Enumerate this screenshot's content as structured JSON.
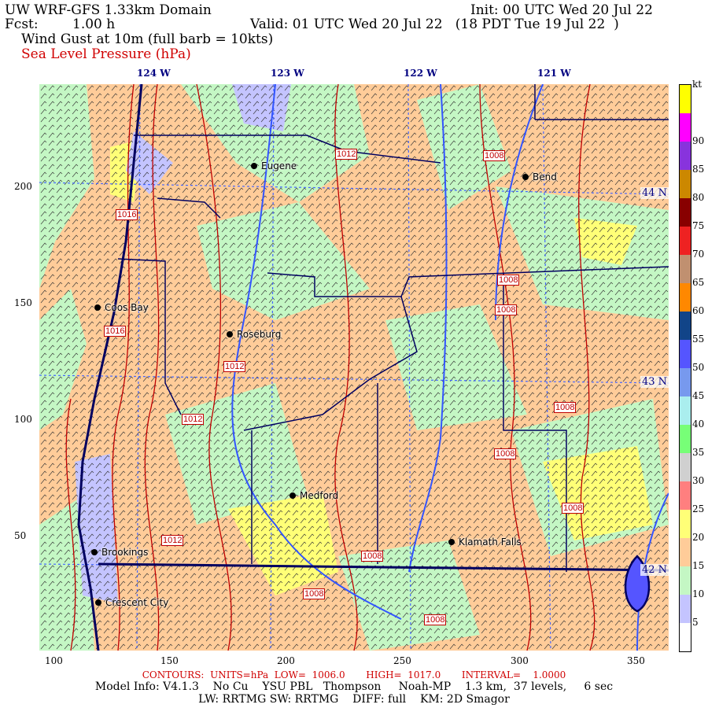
{
  "header": {
    "title": "UW WRF-GFS 1.33km Domain",
    "init": "Init: 00 UTC Wed 20 Jul 22",
    "fcst_label": "Fcst:",
    "fcst_value": "1.00 h",
    "valid": "Valid: 01 UTC Wed 20 Jul 22   (18 PDT Tue 19 Jul 22  )",
    "field1": "Wind Gust at 10m (full barb = 10kts)",
    "field2": "Sea Level Pressure (hPa)"
  },
  "lon_labels": [
    "124 W",
    "123 W",
    "122 W",
    "121 W"
  ],
  "lat_labels": [
    "44 N",
    "43 N",
    "42 N"
  ],
  "x_ticks": [
    "100",
    "150",
    "200",
    "250",
    "300",
    "350"
  ],
  "y_ticks": [
    "200",
    "150",
    "100",
    "50"
  ],
  "cities": [
    {
      "name": "Eugene"
    },
    {
      "name": "Bend"
    },
    {
      "name": "Coos Bay"
    },
    {
      "name": "Roseburg"
    },
    {
      "name": "Medford"
    },
    {
      "name": "Klamath Falls"
    },
    {
      "name": "Brookings"
    },
    {
      "name": "Crescent City"
    }
  ],
  "contour_labels": [
    "1012",
    "1008",
    "1016",
    "1008",
    "1008",
    "1016",
    "1012",
    "1012",
    "1008",
    "1008",
    "1008",
    "1012",
    "1008",
    "1008",
    "1008"
  ],
  "colorbar": {
    "unit": "kt",
    "labels": [
      "5",
      "10",
      "15",
      "20",
      "25",
      "30",
      "35",
      "40",
      "45",
      "50",
      "55",
      "60",
      "65",
      "70",
      "75",
      "80",
      "85",
      "90"
    ],
    "colors": [
      "#ffffff",
      "#c4c4ff",
      "#c4f7c4",
      "#ffcc99",
      "#ffff77",
      "#ff7f7f",
      "#d0d0d0",
      "#77ff77",
      "#aaeeee",
      "#7799ee",
      "#5555ff",
      "#114488",
      "#ff8800",
      "#c09070",
      "#ee2222",
      "#880000",
      "#cc8800",
      "#8833dd",
      "#ff00ff",
      "#ffff00"
    ]
  },
  "footer": {
    "contours": "CONTOURS:  UNITS=hPa  LOW=  1006.0       HIGH=  1017.0       INTERVAL=    1.0000",
    "model": "Model Info: V4.1.3    No Cu    YSU PBL   Thompson     Noah-MP    1.3 km,  37 levels,     6 sec",
    "physics": "LW: RRTMG SW: RRTMG    DIFF: full    KM: 2D Smagor"
  }
}
